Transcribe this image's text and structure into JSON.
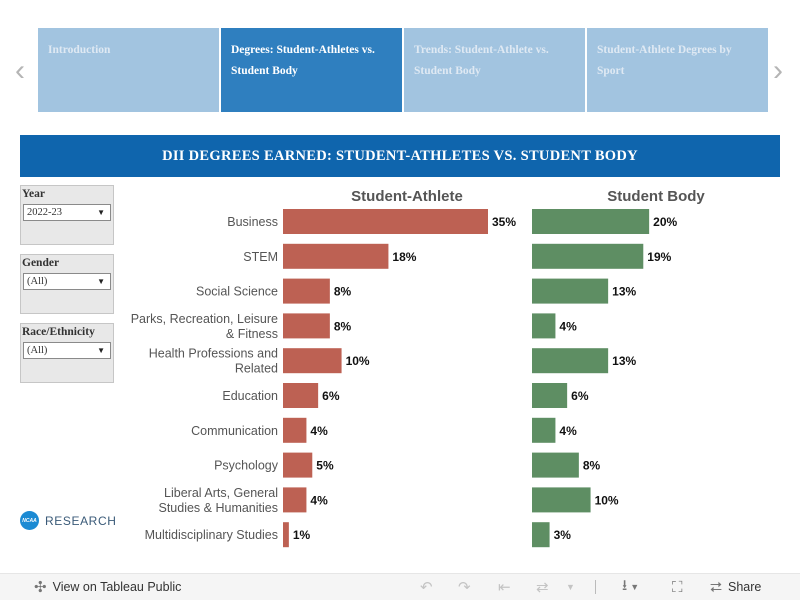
{
  "nav": {
    "prev_icon": "chevron-left-icon",
    "next_icon": "chevron-right-icon",
    "tabs": [
      {
        "label": "Introduction",
        "active": false
      },
      {
        "label": "Degrees: Student-Athletes vs. Student Body",
        "active": true
      },
      {
        "label": "Trends: Student-Athlete vs. Student Body",
        "active": false
      },
      {
        "label": "Student-Athlete Degrees by Sport",
        "active": false
      }
    ]
  },
  "banner": {
    "title": "DII DEGREES EARNED: STUDENT-ATHLETES VS. STUDENT BODY"
  },
  "filters": {
    "year": {
      "label": "Year",
      "value": "2022-23"
    },
    "gender": {
      "label": "Gender",
      "value": "(All)"
    },
    "race": {
      "label": "Race/Ethnicity",
      "value": "(All)"
    }
  },
  "logo": {
    "disc_text": "NCAA",
    "text": "RESEARCH"
  },
  "chart_data": {
    "type": "bar",
    "orientation": "horizontal",
    "categories": [
      "Business",
      "STEM",
      "Social Science",
      "Parks, Recreation, Leisure & Fitness",
      "Health Professions and Related",
      "Education",
      "Communication",
      "Psychology",
      "Liberal Arts, General Studies & Humanities",
      "Multidisciplinary Studies"
    ],
    "series": [
      {
        "name": "Student-Athlete",
        "values": [
          35,
          18,
          8,
          8,
          10,
          6,
          4,
          5,
          4,
          1
        ],
        "color": "#bd6153"
      },
      {
        "name": "Student Body",
        "values": [
          20,
          19,
          13,
          4,
          13,
          6,
          4,
          8,
          10,
          3
        ],
        "color": "#5e8e63"
      }
    ],
    "value_suffix": "%",
    "xlim": [
      0,
      35
    ],
    "grid": false
  },
  "toolbar": {
    "view_label": "View on Tableau Public",
    "share_label": "Share",
    "icons": [
      "tableau-logo-icon",
      "undo-icon",
      "redo-icon",
      "revert-icon",
      "refresh-icon",
      "download-icon",
      "fullscreen-icon",
      "share-icon"
    ]
  }
}
